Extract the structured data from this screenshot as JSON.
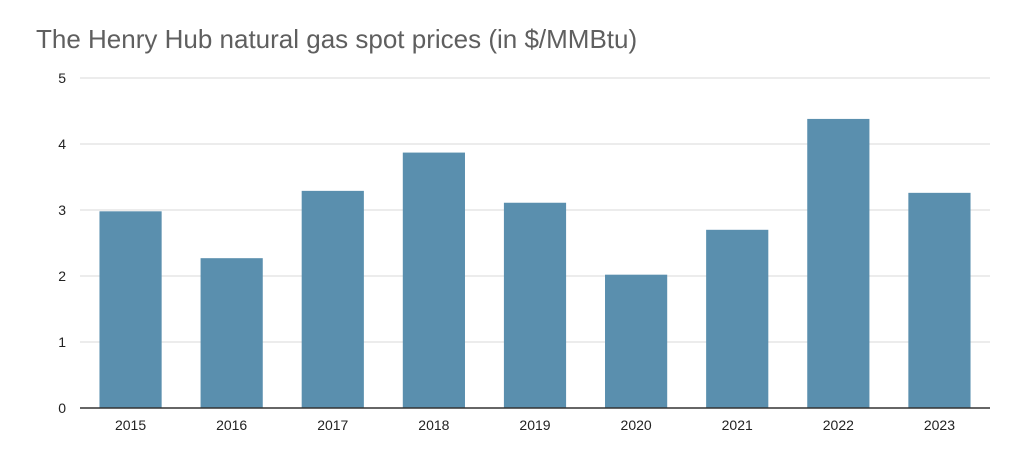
{
  "chart_data": {
    "type": "bar",
    "title": "The Henry Hub natural gas spot prices (in $/MMBtu)",
    "xlabel": "",
    "ylabel": "",
    "categories": [
      "2015",
      "2016",
      "2017",
      "2018",
      "2019",
      "2020",
      "2021",
      "2022",
      "2023"
    ],
    "values": [
      2.98,
      2.27,
      3.29,
      3.87,
      3.11,
      2.02,
      2.7,
      4.38,
      3.26
    ],
    "ylim": [
      0,
      5
    ],
    "yticks": [
      "0",
      "1",
      "2",
      "3",
      "4",
      "5"
    ],
    "grid": true,
    "legend": "none",
    "bar_color": "#5a8fae",
    "grid_color": "#d9d9d9",
    "axis_color": "#333333"
  }
}
